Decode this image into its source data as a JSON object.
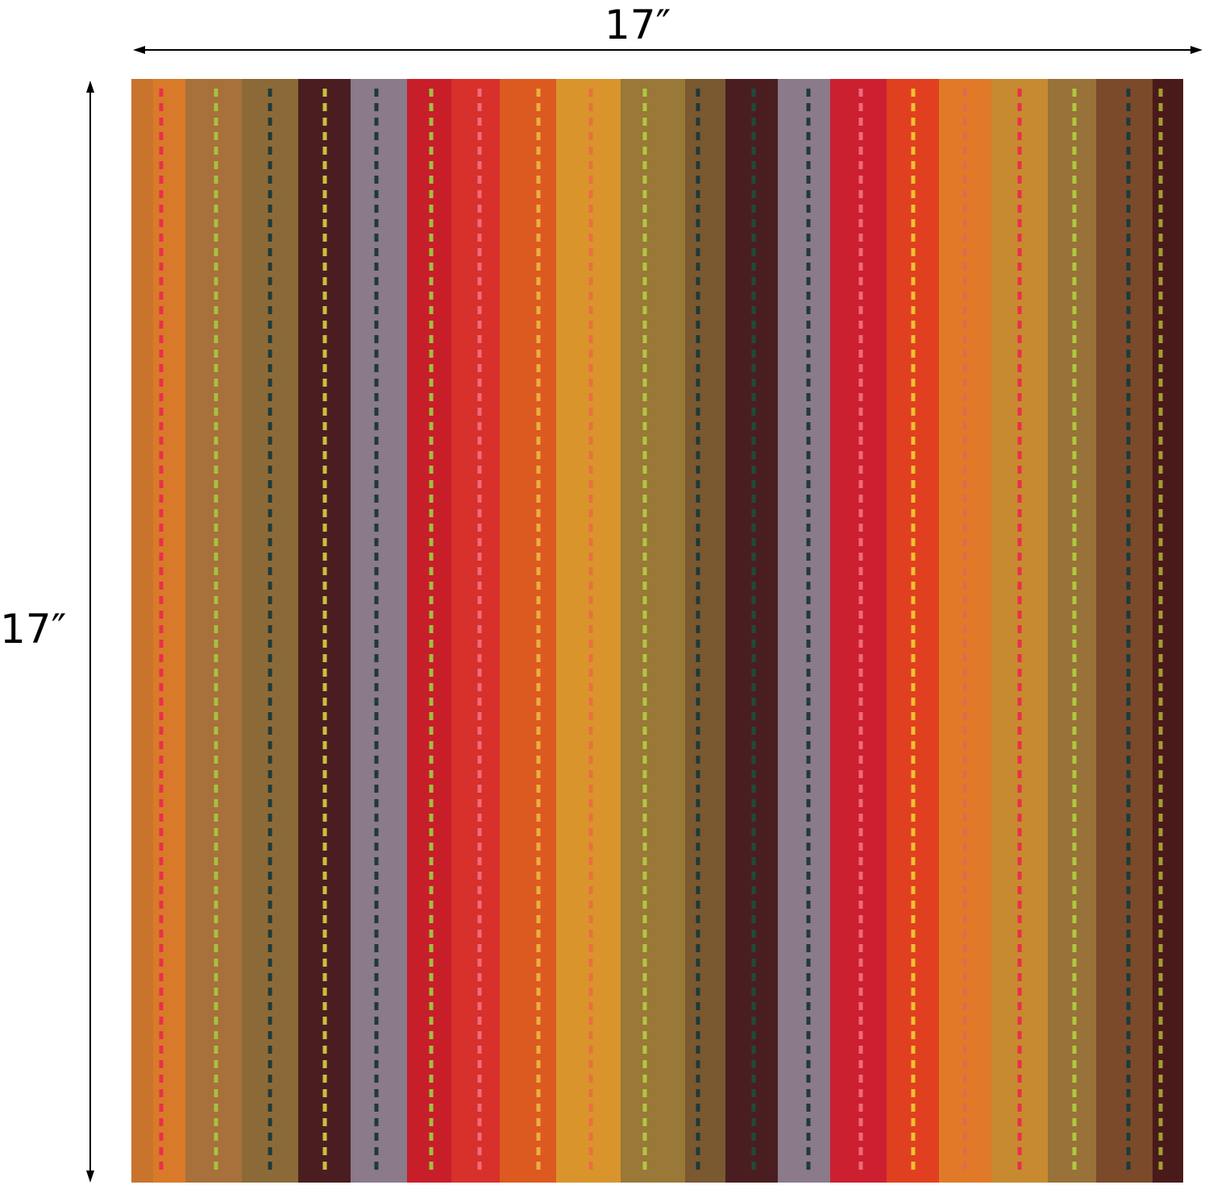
{
  "width_label": "17″",
  "height_label": "17″"
}
